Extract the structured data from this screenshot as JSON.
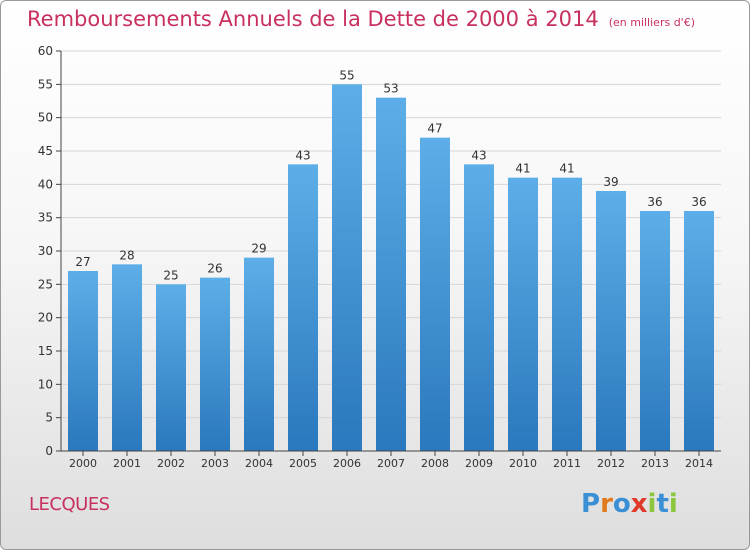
{
  "title": "Remboursements Annuels de la Dette de 2000 à 2014",
  "subtitle": "(en milliers d'€)",
  "commune": "LECQUES",
  "logo": {
    "letters": [
      "P",
      "r",
      "o",
      "x",
      "i",
      "t",
      "i"
    ],
    "colors": [
      "#3b8fd4",
      "#e07a1c",
      "#3b8fd4",
      "#e03a2a",
      "#8cc63f",
      "#3b8fd4",
      "#8cc63f"
    ]
  },
  "colors": {
    "title": "#c8305e",
    "bar_top": "#5daee8",
    "bar_bottom": "#2a78bd",
    "axis": "#444444",
    "grid": "#d6d6d6"
  },
  "chart_data": {
    "type": "bar",
    "categories": [
      "2000",
      "2001",
      "2002",
      "2003",
      "2004",
      "2005",
      "2006",
      "2007",
      "2008",
      "2009",
      "2010",
      "2011",
      "2012",
      "2013",
      "2014"
    ],
    "values": [
      27,
      28,
      25,
      26,
      29,
      43,
      55,
      53,
      47,
      43,
      41,
      41,
      39,
      36,
      36
    ],
    "data_labels": [
      "27",
      "28",
      "25",
      "26",
      "29",
      "43",
      "55",
      "53",
      "47",
      "43",
      "41",
      "41",
      "39",
      "36",
      "36"
    ],
    "yticks": [
      "0",
      "5",
      "10",
      "15",
      "20",
      "25",
      "30",
      "35",
      "40",
      "45",
      "50",
      "55",
      "60"
    ],
    "ylim": [
      0,
      60
    ],
    "grid": true,
    "title": "Remboursements Annuels de la Dette de 2000 à 2014",
    "xlabel": "",
    "ylabel": ""
  }
}
